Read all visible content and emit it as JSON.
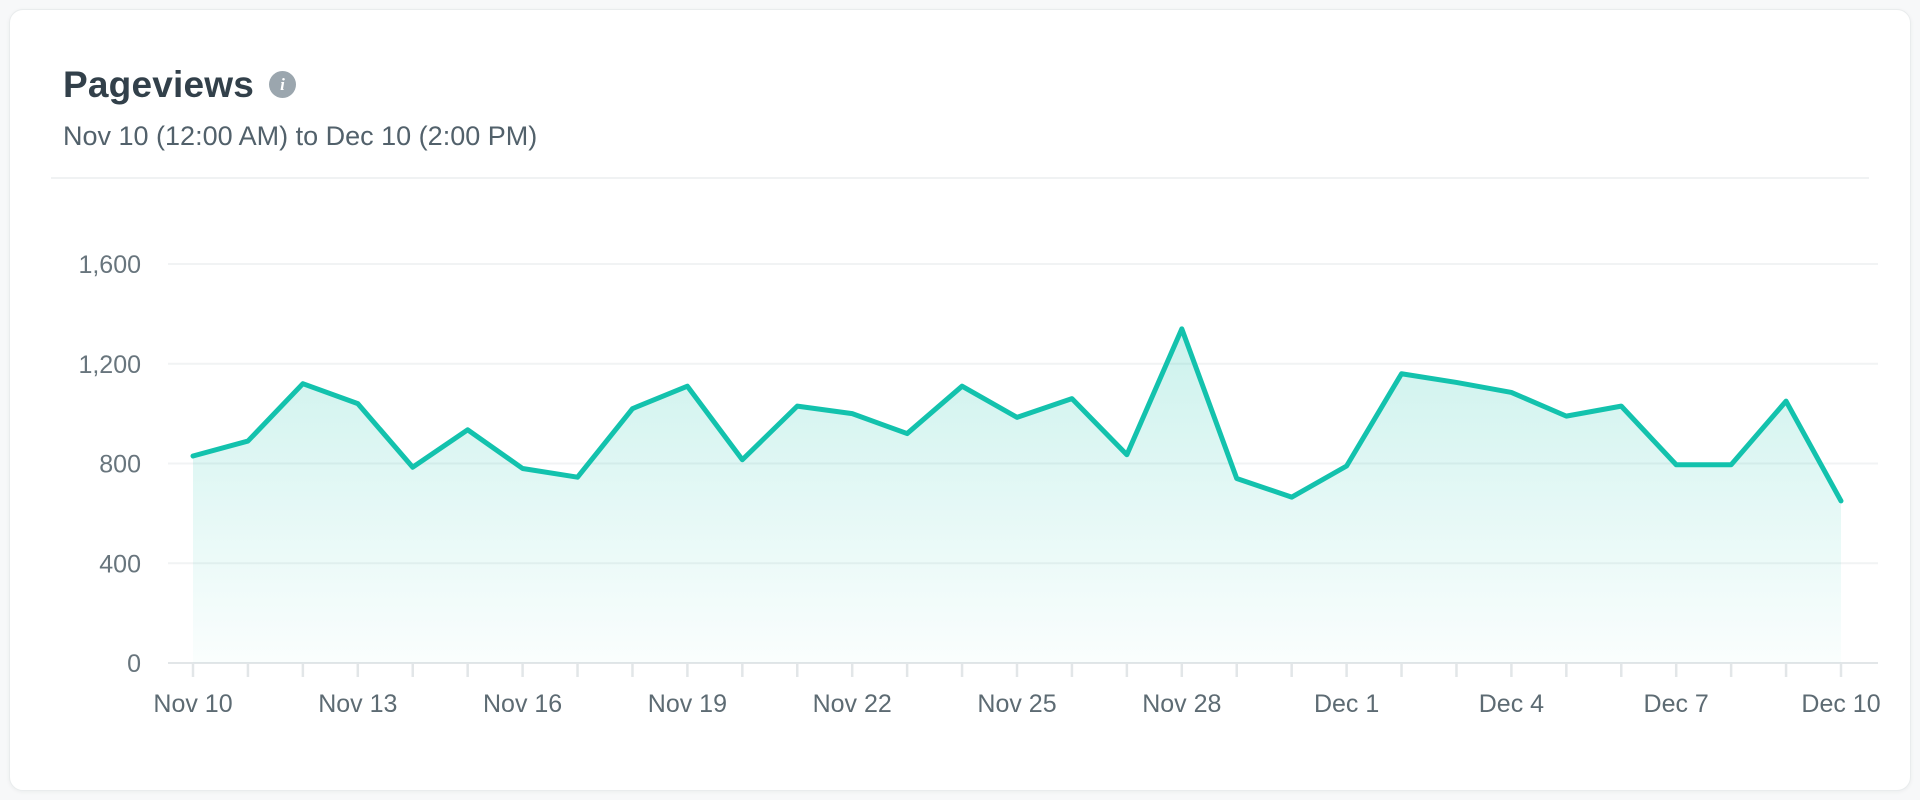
{
  "card": {
    "title": "Pageviews",
    "info_icon_glyph": "i",
    "subtitle": "Nov 10 (12:00 AM) to Dec 10 (2:00 PM)"
  },
  "chart_data": {
    "type": "area",
    "title": "Pageviews",
    "x": [
      "Nov 10",
      "Nov 11",
      "Nov 12",
      "Nov 13",
      "Nov 14",
      "Nov 15",
      "Nov 16",
      "Nov 17",
      "Nov 18",
      "Nov 19",
      "Nov 20",
      "Nov 21",
      "Nov 22",
      "Nov 23",
      "Nov 24",
      "Nov 25",
      "Nov 26",
      "Nov 27",
      "Nov 28",
      "Nov 29",
      "Nov 30",
      "Dec 1",
      "Dec 2",
      "Dec 3",
      "Dec 4",
      "Dec 5",
      "Dec 6",
      "Dec 7",
      "Dec 8",
      "Dec 9",
      "Dec 10"
    ],
    "values": [
      830,
      890,
      1120,
      1040,
      785,
      935,
      780,
      745,
      1020,
      1110,
      815,
      1030,
      1000,
      920,
      1110,
      985,
      1060,
      835,
      1340,
      740,
      665,
      790,
      1160,
      1125,
      1085,
      990,
      1030,
      795,
      795,
      1050,
      650
    ],
    "x_label_every": 3,
    "x_tick_labels": [
      "Nov 10",
      "Nov 13",
      "Nov 16",
      "Nov 19",
      "Nov 22",
      "Nov 25",
      "Nov 28",
      "Dec 1",
      "Dec 4",
      "Dec 7",
      "Dec 10"
    ],
    "y_ticks": [
      0,
      400,
      800,
      1200,
      1600
    ],
    "y_tick_labels": [
      "0",
      "400",
      "800",
      "1,200",
      "1,600"
    ],
    "ylim": [
      0,
      1600
    ],
    "grid": "horizontal",
    "legend": "none",
    "colors": {
      "line": "#13c2ad",
      "fill_top": "rgba(18,194,171,0.22)",
      "fill_bottom": "rgba(18,194,171,0.02)",
      "gridline": "#f1f3f4",
      "axis_line": "#e2e6e8",
      "tick": "#e2e6e8",
      "y_label": "#68757d",
      "x_label": "#5d6b73"
    }
  }
}
